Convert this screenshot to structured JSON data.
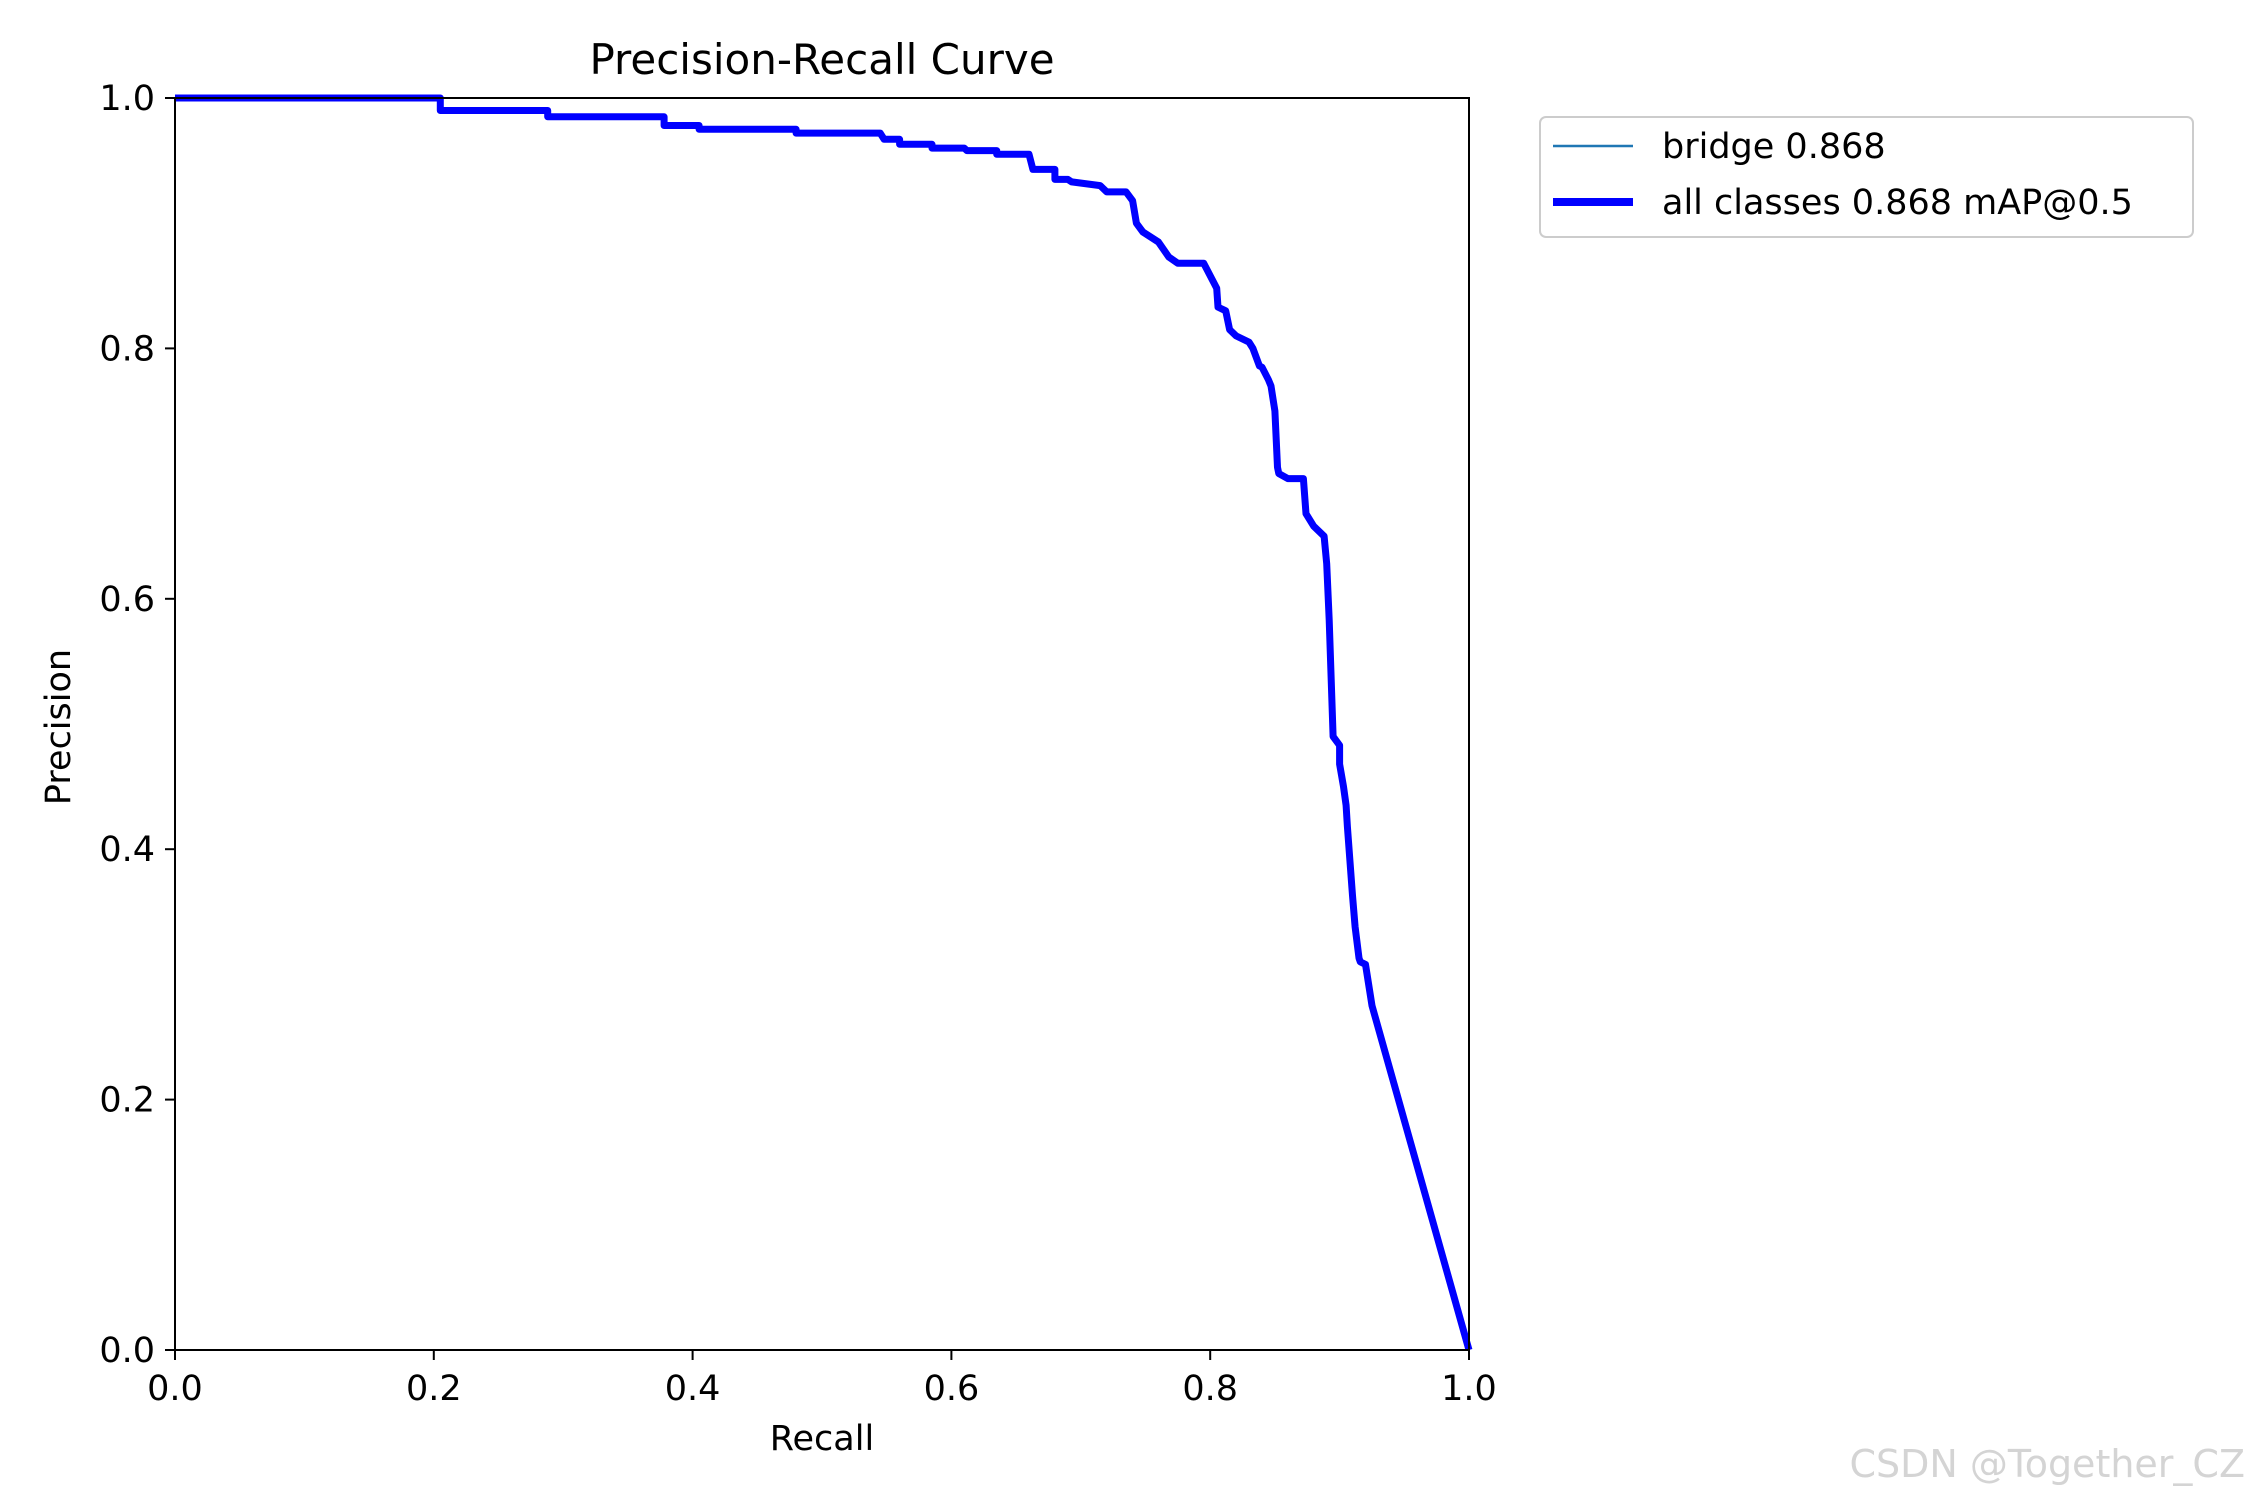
{
  "chart_data": {
    "type": "line",
    "title": "Precision-Recall Curve",
    "xlabel": "Recall",
    "ylabel": "Precision",
    "xlim": [
      0.0,
      1.0
    ],
    "ylim": [
      0.0,
      1.0
    ],
    "xticks": [
      "0.0",
      "0.2",
      "0.4",
      "0.6",
      "0.8",
      "1.0"
    ],
    "yticks": [
      "0.0",
      "0.2",
      "0.4",
      "0.6",
      "0.8",
      "1.0"
    ],
    "grid": false,
    "legend_position": "outside-top-right",
    "series": [
      {
        "name": "bridge 0.868",
        "color": "#1f77b4",
        "style": "thin",
        "x": [
          0.0,
          0.205,
          0.205,
          0.288,
          0.288,
          0.378,
          0.378,
          0.405,
          0.405,
          0.48,
          0.48,
          0.545,
          0.548,
          0.56,
          0.56,
          0.585,
          0.585,
          0.61,
          0.612,
          0.635,
          0.635,
          0.66,
          0.663,
          0.68,
          0.68,
          0.69,
          0.693,
          0.715,
          0.72,
          0.735,
          0.74,
          0.743,
          0.748,
          0.76,
          0.768,
          0.775,
          0.795,
          0.8,
          0.805,
          0.806,
          0.812,
          0.815,
          0.82,
          0.83,
          0.833,
          0.838,
          0.84,
          0.845,
          0.847,
          0.85,
          0.852,
          0.853,
          0.86,
          0.872,
          0.874,
          0.88,
          0.883,
          0.888,
          0.89,
          0.892,
          0.895,
          0.9,
          0.9,
          0.903,
          0.905,
          0.906,
          0.908,
          0.91,
          0.912,
          0.915,
          0.916,
          0.92,
          0.925,
          1.0
        ],
        "y": [
          1.0,
          1.0,
          0.99,
          0.99,
          0.985,
          0.985,
          0.978,
          0.978,
          0.975,
          0.975,
          0.972,
          0.972,
          0.967,
          0.967,
          0.963,
          0.963,
          0.96,
          0.96,
          0.958,
          0.958,
          0.955,
          0.955,
          0.943,
          0.943,
          0.935,
          0.935,
          0.933,
          0.93,
          0.925,
          0.925,
          0.918,
          0.9,
          0.893,
          0.885,
          0.873,
          0.868,
          0.868,
          0.858,
          0.848,
          0.833,
          0.83,
          0.815,
          0.81,
          0.805,
          0.8,
          0.786,
          0.785,
          0.775,
          0.77,
          0.75,
          0.705,
          0.7,
          0.696,
          0.696,
          0.668,
          0.658,
          0.655,
          0.65,
          0.628,
          0.583,
          0.49,
          0.483,
          0.468,
          0.45,
          0.435,
          0.418,
          0.39,
          0.363,
          0.338,
          0.313,
          0.31,
          0.308,
          0.275,
          0.0
        ]
      },
      {
        "name": "all classes 0.868 mAP@0.5",
        "color": "#0000ff",
        "style": "thick",
        "x": [
          0.0,
          0.205,
          0.205,
          0.288,
          0.288,
          0.378,
          0.378,
          0.405,
          0.405,
          0.48,
          0.48,
          0.545,
          0.548,
          0.56,
          0.56,
          0.585,
          0.585,
          0.61,
          0.612,
          0.635,
          0.635,
          0.66,
          0.663,
          0.68,
          0.68,
          0.69,
          0.693,
          0.715,
          0.72,
          0.735,
          0.74,
          0.743,
          0.748,
          0.76,
          0.768,
          0.775,
          0.795,
          0.8,
          0.805,
          0.806,
          0.812,
          0.815,
          0.82,
          0.83,
          0.833,
          0.838,
          0.84,
          0.845,
          0.847,
          0.85,
          0.852,
          0.853,
          0.86,
          0.872,
          0.874,
          0.88,
          0.883,
          0.888,
          0.89,
          0.892,
          0.895,
          0.9,
          0.9,
          0.903,
          0.905,
          0.906,
          0.908,
          0.91,
          0.912,
          0.915,
          0.916,
          0.92,
          0.925,
          1.0
        ],
        "y": [
          1.0,
          1.0,
          0.99,
          0.99,
          0.985,
          0.985,
          0.978,
          0.978,
          0.975,
          0.975,
          0.972,
          0.972,
          0.967,
          0.967,
          0.963,
          0.963,
          0.96,
          0.96,
          0.958,
          0.958,
          0.955,
          0.955,
          0.943,
          0.943,
          0.935,
          0.935,
          0.933,
          0.93,
          0.925,
          0.925,
          0.918,
          0.9,
          0.893,
          0.885,
          0.873,
          0.868,
          0.868,
          0.858,
          0.848,
          0.833,
          0.83,
          0.815,
          0.81,
          0.805,
          0.8,
          0.786,
          0.785,
          0.775,
          0.77,
          0.75,
          0.705,
          0.7,
          0.696,
          0.696,
          0.668,
          0.658,
          0.655,
          0.65,
          0.628,
          0.583,
          0.49,
          0.483,
          0.468,
          0.45,
          0.435,
          0.418,
          0.39,
          0.363,
          0.338,
          0.313,
          0.31,
          0.308,
          0.275,
          0.0
        ]
      }
    ]
  },
  "watermark": "CSDN @Together_CZ"
}
